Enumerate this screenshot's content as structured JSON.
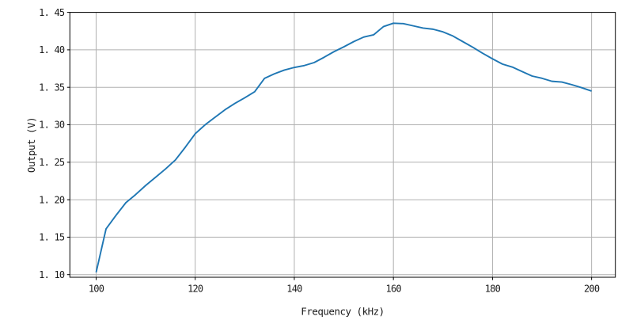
{
  "figure": {
    "background": "#ffffff"
  },
  "chart_data": {
    "type": "line",
    "title": "",
    "xlabel": "Frequency (kHz)",
    "ylabel": "Output (V)",
    "x_ticks": [
      100,
      120,
      140,
      160,
      180,
      200
    ],
    "x_tick_labels": [
      "100",
      "120",
      "140",
      "160",
      "180",
      "200"
    ],
    "y_ticks": [
      1.1,
      1.15,
      1.2,
      1.25,
      1.3,
      1.35,
      1.4,
      1.45
    ],
    "y_tick_labels": [
      "1. 10",
      "1. 15",
      "1. 20",
      "1. 25",
      "1. 30",
      "1. 35",
      "1. 40",
      "1. 45"
    ],
    "xlim": [
      94.7,
      204.8
    ],
    "ylim": [
      1.0965,
      1.45
    ],
    "grid": true,
    "legend": false,
    "line_color": "#1f77b4",
    "grid_color": "#b0b0b0",
    "spine_color": "#000000",
    "series": [
      {
        "name": "Output",
        "x": [
          100,
          102,
          104,
          106,
          108,
          110,
          112,
          114,
          116,
          118,
          120,
          122,
          124,
          126,
          128,
          130,
          132,
          134,
          136,
          138,
          140,
          142,
          144,
          146,
          148,
          150,
          152,
          154,
          156,
          158,
          160,
          162,
          164,
          166,
          168,
          170,
          172,
          174,
          176,
          178,
          180,
          182,
          184,
          186,
          188,
          190,
          192,
          194,
          196,
          198,
          200
        ],
        "y": [
          1.103,
          1.161,
          1.179,
          1.196,
          1.207,
          1.219,
          1.23,
          1.241,
          1.253,
          1.27,
          1.288,
          1.3,
          1.31,
          1.32,
          1.3285,
          1.336,
          1.344,
          1.362,
          1.368,
          1.373,
          1.3765,
          1.379,
          1.383,
          1.39,
          1.3975,
          1.404,
          1.411,
          1.417,
          1.42,
          1.431,
          1.4355,
          1.435,
          1.432,
          1.429,
          1.4275,
          1.424,
          1.4185,
          1.411,
          1.4035,
          1.3955,
          1.388,
          1.381,
          1.377,
          1.371,
          1.365,
          1.362,
          1.358,
          1.357,
          1.3535,
          1.3495,
          1.345
        ]
      }
    ]
  }
}
